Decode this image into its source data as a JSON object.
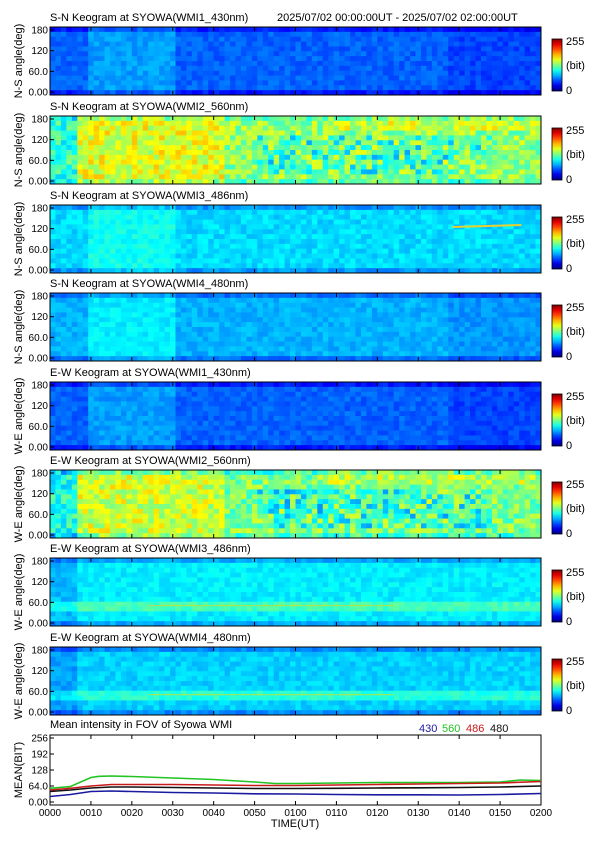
{
  "header": {
    "time_range": "2025/07/02 00:00:00UT - 2025/07/02 02:00:00UT"
  },
  "chart_data": [
    {
      "type": "heatmap",
      "title": "S-N Keogram at SYOWA(WMI1_430nm)",
      "ylabel": "N-S angle(deg)",
      "yticks": [
        "180",
        "120",
        "60.0",
        "0.00"
      ],
      "ylim": [
        0,
        180
      ],
      "colorbar": {
        "max": "255",
        "unit": "(bit)",
        "min": "0"
      },
      "brightness": 0.22,
      "pattern": "faint"
    },
    {
      "type": "heatmap",
      "title": "S-N Keogram at SYOWA(WMI2_560nm)",
      "ylabel": "N-S angle(deg)",
      "yticks": [
        "180",
        "120",
        "60.0",
        "0.00"
      ],
      "ylim": [
        0,
        180
      ],
      "colorbar": {
        "max": "255",
        "unit": "(bit)",
        "min": "0"
      },
      "brightness": 0.52,
      "pattern": "bright"
    },
    {
      "type": "heatmap",
      "title": "S-N Keogram at SYOWA(WMI3_486nm)",
      "ylabel": "N-S angle(deg)",
      "yticks": [
        "180",
        "120",
        "60.0",
        "0.00"
      ],
      "ylim": [
        0,
        180
      ],
      "colorbar": {
        "max": "255",
        "unit": "(bit)",
        "min": "0"
      },
      "brightness": 0.34,
      "pattern": "streak"
    },
    {
      "type": "heatmap",
      "title": "S-N Keogram at SYOWA(WMI4_480nm)",
      "ylabel": "N-S angle(deg)",
      "yticks": [
        "180",
        "120",
        "60.0",
        "0.00"
      ],
      "ylim": [
        0,
        180
      ],
      "colorbar": {
        "max": "255",
        "unit": "(bit)",
        "min": "0"
      },
      "brightness": 0.3,
      "pattern": "faint"
    },
    {
      "type": "heatmap",
      "title": "E-W Keogram at SYOWA(WMI1_430nm)",
      "ylabel": "W-E angle(deg)",
      "yticks": [
        "180",
        "120",
        "60.0",
        "0.00"
      ],
      "ylim": [
        0,
        180
      ],
      "colorbar": {
        "max": "255",
        "unit": "(bit)",
        "min": "0"
      },
      "brightness": 0.22,
      "pattern": "faint"
    },
    {
      "type": "heatmap",
      "title": "E-W Keogram at SYOWA(WMI2_560nm)",
      "ylabel": "W-E angle(deg)",
      "yticks": [
        "180",
        "120",
        "60.0",
        "0.00"
      ],
      "ylim": [
        0,
        180
      ],
      "colorbar": {
        "max": "255",
        "unit": "(bit)",
        "min": "0"
      },
      "brightness": 0.5,
      "pattern": "bright"
    },
    {
      "type": "heatmap",
      "title": "E-W Keogram at SYOWA(WMI3_486nm)",
      "ylabel": "W-E angle(deg)",
      "yticks": [
        "180",
        "120",
        "60.0",
        "0.00"
      ],
      "ylim": [
        0,
        180
      ],
      "colorbar": {
        "max": "255",
        "unit": "(bit)",
        "min": "0"
      },
      "brightness": 0.36,
      "pattern": "band"
    },
    {
      "type": "heatmap",
      "title": "E-W Keogram at SYOWA(WMI4_480nm)",
      "ylabel": "W-E angle(deg)",
      "yticks": [
        "180",
        "120",
        "60.0",
        "0.00"
      ],
      "ylim": [
        0,
        180
      ],
      "colorbar": {
        "max": "255",
        "unit": "(bit)",
        "min": "0"
      },
      "brightness": 0.33,
      "pattern": "band"
    },
    {
      "type": "line",
      "title": "Mean intensity in FOV of Syowa WMI",
      "ylabel": "MEAN(BIT)",
      "xlabel": "TIME(UT)",
      "yticks": [
        "256",
        "192",
        "128",
        "64.0",
        "0.00"
      ],
      "ylim": [
        0,
        256
      ],
      "x": [
        0,
        10,
        20,
        30,
        40,
        50,
        60,
        70,
        80,
        90,
        100,
        110,
        120
      ],
      "xticks": [
        "0000",
        "0010",
        "0020",
        "0030",
        "0040",
        "0050",
        "0100",
        "0110",
        "0120",
        "0130",
        "0140",
        "0150",
        "0200"
      ],
      "xlim": [
        0,
        120
      ],
      "legend_position": "top-right",
      "series": [
        {
          "name": "430",
          "color": "#1a1aa0",
          "x": [
            0,
            5,
            10,
            15,
            20,
            30,
            40,
            50,
            60,
            70,
            80,
            90,
            100,
            110,
            120
          ],
          "values": [
            22,
            30,
            42,
            44,
            42,
            38,
            36,
            33,
            32,
            30,
            29,
            29,
            28,
            30,
            34
          ]
        },
        {
          "name": "560",
          "color": "#22c422",
          "x": [
            0,
            5,
            10,
            12,
            15,
            20,
            30,
            40,
            50,
            55,
            60,
            70,
            80,
            90,
            100,
            110,
            115,
            120
          ],
          "values": [
            55,
            62,
            98,
            103,
            104,
            102,
            96,
            90,
            80,
            74,
            74,
            76,
            78,
            78,
            78,
            80,
            88,
            86
          ]
        },
        {
          "name": "486",
          "color": "#c81a1a",
          "x": [
            0,
            5,
            10,
            15,
            20,
            30,
            40,
            50,
            60,
            70,
            80,
            90,
            100,
            110,
            120
          ],
          "values": [
            48,
            55,
            64,
            70,
            70,
            70,
            68,
            66,
            66,
            68,
            70,
            72,
            74,
            76,
            82
          ]
        },
        {
          "name": "480",
          "color": "#111111",
          "x": [
            0,
            5,
            10,
            15,
            20,
            30,
            40,
            50,
            60,
            70,
            80,
            90,
            100,
            110,
            120
          ],
          "values": [
            42,
            48,
            56,
            60,
            60,
            58,
            56,
            54,
            54,
            55,
            56,
            57,
            58,
            60,
            64
          ]
        }
      ]
    }
  ]
}
